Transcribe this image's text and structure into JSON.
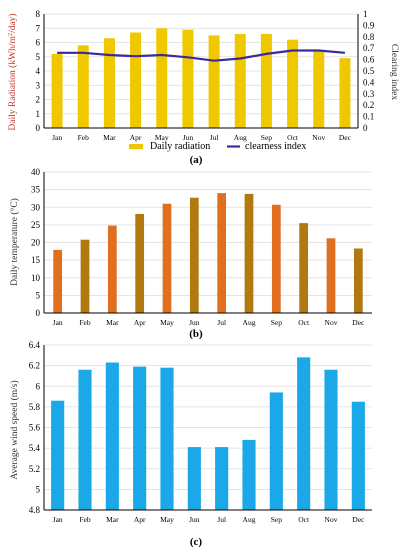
{
  "colors": {
    "radiation": "#f0c800",
    "clearness": "#3a2a9a",
    "temperature": "#e07020",
    "temperature_alt": "#b07a10",
    "wind": "#1aa8e8",
    "grid": "#dcdcdc",
    "axis": "#000000"
  },
  "chart_data": [
    {
      "id": "a",
      "panel_label": "(a)",
      "type": "bar",
      "categories": [
        "Jan",
        "Feb",
        "Mar",
        "Apr",
        "May",
        "Jun",
        "Jul",
        "Aug",
        "Sep",
        "Oct",
        "Nov",
        "Dec"
      ],
      "ylabel": "Daily Radiation (kWh/m²/day)",
      "ylabel_main": "Daily Radiation (kWh/m",
      "ylabel_sup": "2",
      "ylabel_tail": "/day)",
      "ylim": [
        0,
        8
      ],
      "yticks": [
        "0",
        "1",
        "2",
        "3",
        "4",
        "5",
        "6",
        "7",
        "8"
      ],
      "y2label": "Clearing index",
      "y2lim": [
        0,
        1
      ],
      "y2ticks": [
        "0",
        "0.1",
        "0.2",
        "0.3",
        "0.4",
        "0.5",
        "0.6",
        "0.7",
        "0.8",
        "0.9",
        "1"
      ],
      "grid": true,
      "legend": "bottom",
      "series": [
        {
          "name": "Daily radiation",
          "type": "bar",
          "axis": "left",
          "values": [
            5.2,
            5.8,
            6.3,
            6.7,
            7.0,
            6.9,
            6.5,
            6.6,
            6.6,
            6.2,
            5.4,
            4.9
          ]
        },
        {
          "name": "clearness index",
          "type": "line",
          "axis": "right",
          "values": [
            0.66,
            0.66,
            0.64,
            0.63,
            0.64,
            0.62,
            0.59,
            0.61,
            0.65,
            0.68,
            0.68,
            0.66
          ]
        }
      ]
    },
    {
      "id": "b",
      "panel_label": "(b)",
      "type": "bar",
      "categories": [
        "Jan",
        "Feb",
        "Mar",
        "Apr",
        "May",
        "Jun",
        "Jul",
        "Aug",
        "Sep",
        "Oct",
        "Nov",
        "Dec"
      ],
      "ylabel": "Daily temperature (°C)",
      "ylim": [
        0,
        40
      ],
      "yticks": [
        "0",
        "5",
        "10",
        "15",
        "20",
        "25",
        "30",
        "35",
        "40"
      ],
      "grid": true,
      "series": [
        {
          "values": [
            17.9,
            20.8,
            24.8,
            28.1,
            31.0,
            32.7,
            34.0,
            33.8,
            30.7,
            25.5,
            21.2,
            18.3
          ]
        }
      ]
    },
    {
      "id": "c",
      "panel_label": "(c)",
      "type": "bar",
      "categories": [
        "Jan",
        "Feb",
        "Mar",
        "Apr",
        "May",
        "Jun",
        "Jul",
        "Aug",
        "Sep",
        "Oct",
        "Nov",
        "Dec"
      ],
      "ylabel": "Average wind speed (m/s)",
      "ylim": [
        4.8,
        6.4
      ],
      "yticks": [
        "4.8",
        "5",
        "5.2",
        "5.4",
        "5.6",
        "5.8",
        "6",
        "6.2",
        "6.4"
      ],
      "grid": true,
      "series": [
        {
          "values": [
            5.86,
            6.16,
            6.23,
            6.19,
            6.18,
            5.41,
            5.41,
            5.48,
            5.94,
            6.28,
            6.16,
            5.85
          ]
        }
      ]
    }
  ]
}
